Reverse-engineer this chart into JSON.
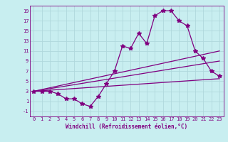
{
  "title": "",
  "xlabel": "Windchill (Refroidissement éolien,°C)",
  "ylabel": "",
  "bg_color": "#c8eef0",
  "line_color": "#800080",
  "grid_color": "#b0d8dc",
  "xlim": [
    -0.5,
    23.5
  ],
  "ylim": [
    -2,
    20
  ],
  "xticks": [
    0,
    1,
    2,
    3,
    4,
    5,
    6,
    7,
    8,
    9,
    10,
    11,
    12,
    13,
    14,
    15,
    16,
    17,
    18,
    19,
    20,
    21,
    22,
    23
  ],
  "yticks": [
    -1,
    1,
    3,
    5,
    7,
    9,
    11,
    13,
    15,
    17,
    19
  ],
  "main_x": [
    0,
    1,
    2,
    3,
    4,
    5,
    6,
    7,
    8,
    9,
    10,
    11,
    12,
    13,
    14,
    15,
    16,
    17,
    18,
    19,
    20,
    21,
    22,
    23
  ],
  "main_y": [
    3,
    3,
    3,
    2.5,
    1.5,
    1.5,
    0.5,
    0,
    2,
    4.5,
    7,
    12,
    11.5,
    14.5,
    12.5,
    18,
    19,
    19,
    17,
    16,
    11,
    9.5,
    7,
    6
  ],
  "line1_x": [
    0,
    23
  ],
  "line1_y": [
    3,
    5.5
  ],
  "line2_x": [
    0,
    23
  ],
  "line2_y": [
    3,
    11
  ],
  "line3_x": [
    0,
    23
  ],
  "line3_y": [
    3,
    9.0
  ],
  "marker": "*",
  "markersize": 4,
  "linewidth": 0.9,
  "axis_fontsize": 5.5,
  "tick_fontsize": 5.0,
  "xlabel_fontsize": 5.5
}
